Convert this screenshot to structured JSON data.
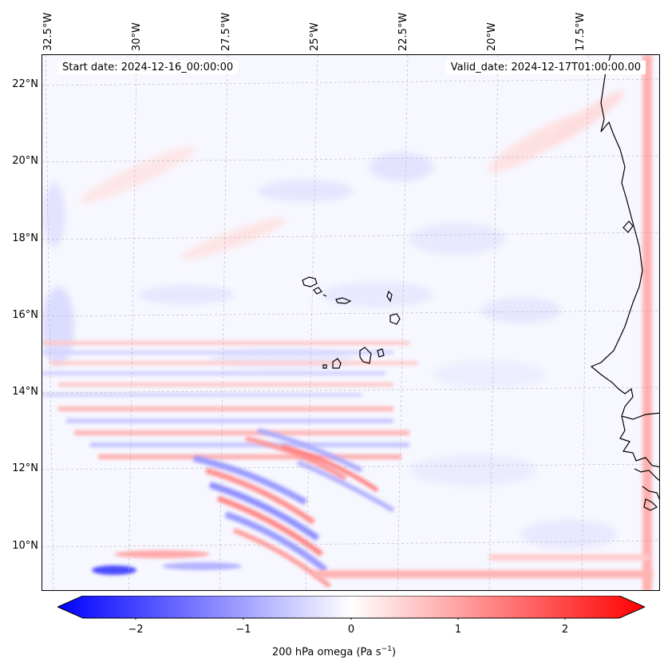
{
  "header": {
    "start_date": "Start date: 2024-12-16_00:00:00",
    "valid_date": "Valid_date: 2024-12-17T01:00:00.00"
  },
  "axes": {
    "lon_labels": [
      "32.5°W",
      "30°W",
      "27.5°W",
      "25°W",
      "22.5°W",
      "20°W",
      "17.5°W"
    ],
    "lat_labels": [
      "22°N",
      "20°N",
      "18°N",
      "16°N",
      "14°N",
      "12°N",
      "10°N"
    ]
  },
  "colorbar": {
    "ticks": [
      "−2",
      "−1",
      "0",
      "1",
      "2"
    ],
    "label_main": "200 hPa omega (Pa s",
    "label_sup": "−1",
    "label_end": ")",
    "min": -2.75,
    "max": 2.75,
    "colors": {
      "negative": "#0000ff",
      "neutral": "#ffffff",
      "positive": "#ff0000"
    }
  },
  "map": {
    "features": [
      "coastline",
      "Cape Verde islands",
      "West African coast"
    ],
    "gridlines": true
  }
}
